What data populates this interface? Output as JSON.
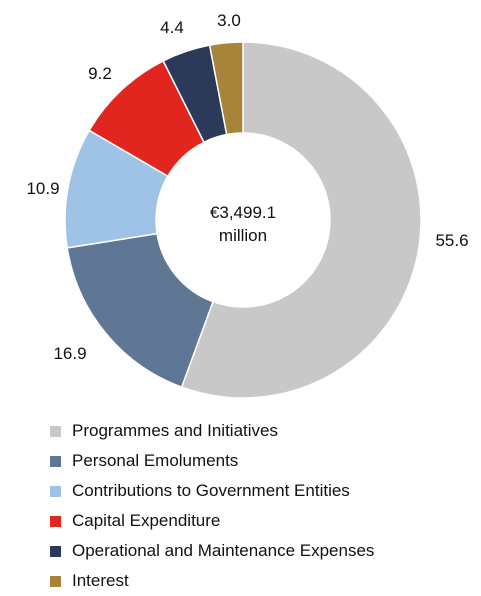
{
  "chart_data": {
    "type": "pie",
    "donut": true,
    "center_label": [
      "€3,499.1",
      "million"
    ],
    "slices": [
      {
        "label": "Programmes and Initiatives",
        "value": 55.6,
        "value_label": "55.6",
        "color": "#c8c8c8"
      },
      {
        "label": "Personal Emoluments",
        "value": 16.9,
        "value_label": "16.9",
        "color": "#607695"
      },
      {
        "label": "Contributions to Government Entities",
        "value": 10.9,
        "value_label": "10.9",
        "color": "#9ec3e6"
      },
      {
        "label": "Capital Expenditure",
        "value": 9.2,
        "value_label": "9.2",
        "color": "#e0261f"
      },
      {
        "label": "Operational and Maintenance Expenses",
        "value": 4.4,
        "value_label": "4.4",
        "color": "#2b3a59"
      },
      {
        "label": "Interest",
        "value": 3.0,
        "value_label": "3.0",
        "color": "#a8843a"
      }
    ],
    "legend_position": "bottom"
  }
}
